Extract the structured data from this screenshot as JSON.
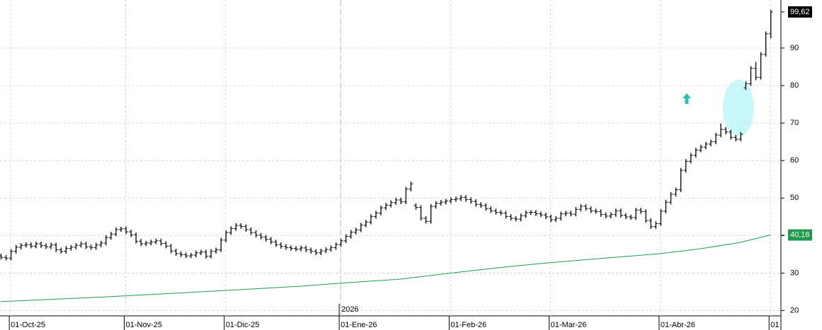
{
  "chart_data": {
    "type": "ohlc",
    "ylim": [
      18.6,
      102.8
    ],
    "yticks": [
      20,
      30,
      40,
      50,
      60,
      70,
      80,
      90
    ],
    "grid": true,
    "bar_color": "#000000",
    "xticks": [
      {
        "value": 2,
        "label": "01-Oct-25"
      },
      {
        "value": 25,
        "label": "01-Nov-25"
      },
      {
        "value": 45,
        "label": "01-Dic-25"
      },
      {
        "value": 68,
        "label": "01-Ene-26"
      },
      {
        "value": 90,
        "label": "01-Feb-26"
      },
      {
        "value": 110,
        "label": "01-Mar-26"
      },
      {
        "value": 132,
        "label": "01-Abr-26"
      },
      {
        "value": 154,
        "label": "01"
      }
    ],
    "year_marker": {
      "value": 68,
      "label": "2026"
    },
    "ohlc": {
      "open": [
        34.6,
        34.2,
        34.0,
        35.8,
        36.9,
        37.4,
        37.6,
        37.2,
        37.8,
        37.3,
        37.0,
        37.5,
        36.2,
        35.8,
        36.6,
        36.9,
        37.4,
        37.8,
        37.0,
        36.8,
        37.5,
        38.0,
        39.5,
        40.4,
        41.6,
        41.8,
        41.0,
        40.2,
        38.5,
        37.8,
        38.0,
        38.3,
        38.6,
        37.9,
        37.2,
        35.9,
        35.2,
        34.9,
        34.6,
        34.8,
        35.4,
        35.6,
        34.5,
        35.8,
        36.2,
        38.8,
        40.8,
        41.9,
        42.7,
        42.4,
        41.6,
        40.8,
        40.1,
        39.6,
        39.0,
        38.3,
        37.6,
        37.1,
        36.8,
        36.6,
        36.4,
        36.7,
        36.2,
        35.8,
        35.4,
        35.9,
        36.3,
        36.8,
        37.6,
        38.6,
        39.8,
        40.9,
        41.5,
        42.8,
        43.6,
        45.1,
        46.0,
        47.4,
        48.1,
        48.8,
        49.5,
        49.0,
        52.4,
        48.0,
        47.5,
        44.6,
        43.8,
        47.8,
        48.6,
        48.9,
        49.2,
        49.6,
        49.8,
        50.2,
        49.6,
        49.1,
        48.3,
        48.0,
        47.2,
        46.6,
        46.2,
        46.0,
        45.1,
        44.6,
        44.4,
        45.3,
        46.1,
        46.2,
        45.8,
        45.5,
        45.0,
        44.2,
        44.6,
        45.8,
        46.0,
        45.7,
        47.0,
        47.8,
        47.2,
        46.6,
        46.4,
        45.6,
        45.2,
        45.6,
        46.6,
        45.4,
        45.0,
        44.8,
        46.8,
        46.4,
        44.0,
        42.4,
        43.2,
        46.5,
        48.9,
        51.0,
        52.2,
        57.4,
        59.8,
        61.4,
        62.8,
        63.6,
        64.4,
        65.0,
        66.8,
        68.3,
        67.6,
        66.2,
        65.7,
        79.4,
        80.5,
        84.6,
        82.2,
        88.3,
        93.8
      ],
      "high": [
        35.2,
        34.8,
        36.4,
        37.5,
        38.0,
        38.2,
        38.2,
        38.4,
        38.4,
        37.9,
        38.1,
        38.1,
        36.8,
        37.2,
        37.5,
        38.0,
        38.4,
        38.4,
        37.6,
        38.1,
        38.6,
        40.1,
        41.0,
        42.2,
        42.4,
        42.4,
        41.6,
        40.8,
        39.1,
        38.6,
        38.9,
        39.2,
        39.2,
        38.5,
        37.8,
        36.5,
        35.8,
        35.5,
        35.4,
        36.0,
        36.2,
        36.2,
        36.4,
        36.8,
        39.4,
        41.4,
        42.5,
        43.3,
        43.3,
        43.0,
        42.2,
        41.4,
        40.7,
        40.2,
        39.6,
        38.9,
        38.2,
        37.7,
        37.4,
        37.2,
        37.3,
        37.3,
        36.8,
        36.4,
        36.5,
        36.9,
        37.4,
        38.2,
        39.2,
        40.4,
        41.5,
        42.1,
        43.4,
        44.2,
        45.7,
        46.6,
        48.0,
        48.7,
        49.4,
        50.1,
        50.1,
        53.0,
        54.4,
        48.6,
        48.1,
        45.2,
        48.4,
        49.2,
        49.5,
        49.8,
        50.2,
        50.4,
        50.8,
        50.8,
        50.2,
        49.7,
        48.9,
        48.6,
        47.8,
        47.2,
        46.8,
        46.6,
        45.7,
        45.2,
        45.9,
        46.7,
        46.8,
        46.8,
        46.4,
        46.1,
        45.6,
        45.2,
        46.4,
        46.6,
        46.6,
        47.6,
        48.4,
        48.4,
        47.8,
        47.2,
        47.0,
        46.2,
        46.2,
        47.2,
        47.2,
        46.0,
        45.6,
        47.4,
        47.4,
        47.0,
        44.6,
        43.8,
        47.1,
        49.5,
        51.6,
        52.8,
        58.0,
        60.4,
        62.0,
        63.4,
        64.2,
        65.0,
        65.6,
        67.4,
        69.9,
        68.9,
        68.2,
        66.8,
        67.6,
        81.1,
        85.2,
        86.3,
        88.9,
        94.4,
        100.2
      ],
      "low": [
        33.6,
        33.4,
        33.4,
        35.2,
        36.3,
        36.8,
        36.6,
        36.6,
        36.7,
        36.4,
        36.4,
        35.6,
        35.2,
        35.2,
        36.0,
        36.3,
        36.8,
        36.4,
        36.2,
        36.2,
        36.9,
        37.4,
        38.9,
        39.8,
        41.0,
        40.4,
        39.6,
        37.9,
        37.2,
        37.2,
        37.4,
        37.7,
        37.3,
        36.6,
        35.3,
        34.6,
        34.3,
        34.0,
        34.0,
        34.2,
        34.8,
        33.9,
        33.9,
        35.2,
        35.6,
        38.2,
        40.2,
        41.3,
        41.8,
        41.0,
        40.2,
        39.5,
        39.0,
        38.4,
        37.7,
        37.0,
        36.5,
        36.2,
        36.0,
        35.8,
        35.8,
        35.6,
        35.2,
        34.8,
        34.8,
        35.3,
        35.7,
        36.2,
        37.0,
        38.0,
        39.2,
        40.3,
        40.9,
        42.2,
        43.0,
        44.5,
        45.4,
        46.8,
        47.5,
        48.2,
        48.4,
        48.4,
        51.8,
        46.9,
        44.0,
        43.2,
        43.2,
        47.2,
        48.0,
        48.3,
        48.6,
        49.0,
        49.2,
        49.0,
        48.5,
        47.7,
        47.4,
        46.6,
        46.0,
        45.6,
        45.4,
        44.5,
        44.0,
        43.8,
        43.8,
        44.7,
        45.5,
        45.2,
        44.9,
        44.4,
        43.6,
        43.6,
        44.0,
        45.2,
        45.1,
        45.1,
        46.4,
        46.6,
        46.0,
        45.8,
        45.0,
        44.6,
        44.6,
        45.0,
        44.8,
        44.4,
        44.2,
        44.2,
        45.8,
        43.4,
        41.8,
        41.8,
        42.6,
        45.9,
        48.3,
        50.4,
        51.6,
        56.8,
        59.2,
        60.8,
        62.2,
        63.0,
        63.8,
        64.4,
        66.2,
        67.0,
        65.6,
        65.1,
        65.1,
        78.8,
        79.9,
        81.4,
        81.6,
        87.7,
        92.6
      ],
      "close": [
        34.2,
        34.0,
        35.8,
        36.9,
        37.4,
        37.6,
        37.2,
        37.8,
        37.3,
        37.0,
        37.5,
        36.2,
        35.8,
        36.6,
        36.9,
        37.4,
        37.8,
        37.0,
        36.8,
        37.5,
        38.0,
        39.5,
        40.4,
        41.6,
        41.8,
        41.0,
        40.2,
        38.5,
        37.8,
        38.0,
        38.3,
        38.6,
        37.9,
        37.2,
        35.9,
        35.2,
        34.9,
        34.6,
        34.8,
        35.4,
        35.6,
        34.5,
        35.8,
        36.2,
        38.8,
        40.8,
        41.9,
        42.7,
        42.4,
        41.6,
        40.8,
        40.1,
        39.6,
        39.0,
        38.3,
        37.6,
        37.1,
        36.8,
        36.6,
        36.4,
        36.7,
        36.2,
        35.8,
        35.4,
        35.9,
        36.3,
        36.8,
        37.6,
        38.6,
        39.8,
        40.9,
        41.5,
        42.8,
        43.6,
        45.1,
        46.0,
        47.4,
        48.1,
        48.8,
        49.5,
        49.0,
        52.4,
        53.8,
        47.5,
        44.6,
        43.8,
        47.8,
        48.6,
        48.9,
        49.2,
        49.6,
        49.8,
        50.2,
        49.6,
        49.1,
        48.3,
        48.0,
        47.2,
        46.6,
        46.2,
        46.0,
        45.1,
        44.6,
        44.4,
        45.3,
        46.1,
        46.2,
        45.8,
        45.5,
        45.0,
        44.2,
        44.6,
        45.8,
        46.0,
        45.7,
        47.0,
        47.8,
        47.2,
        46.6,
        46.4,
        45.6,
        45.2,
        45.6,
        46.6,
        45.4,
        45.0,
        44.8,
        46.8,
        46.4,
        44.0,
        42.4,
        43.2,
        46.5,
        48.9,
        51.0,
        52.2,
        57.4,
        59.8,
        61.4,
        62.8,
        63.6,
        64.4,
        65.0,
        66.8,
        68.3,
        67.6,
        66.2,
        65.7,
        67.0,
        80.5,
        84.6,
        82.2,
        88.3,
        93.8,
        99.62
      ]
    },
    "average": {
      "color": "#1e9b50",
      "x": [
        0,
        20,
        40,
        60,
        70,
        80,
        90,
        100,
        110,
        120,
        132,
        140,
        148,
        154
      ],
      "values": [
        22.4,
        23.6,
        25.0,
        26.5,
        27.5,
        28.4,
        30.0,
        31.5,
        32.8,
        33.9,
        35.2,
        36.5,
        38.2,
        40.16
      ]
    },
    "last_labels": [
      {
        "value": 99.62,
        "label": "99,62",
        "color": "#000000"
      },
      {
        "value": 40.16,
        "label": "40,16",
        "color": "#1e9b50"
      }
    ]
  }
}
